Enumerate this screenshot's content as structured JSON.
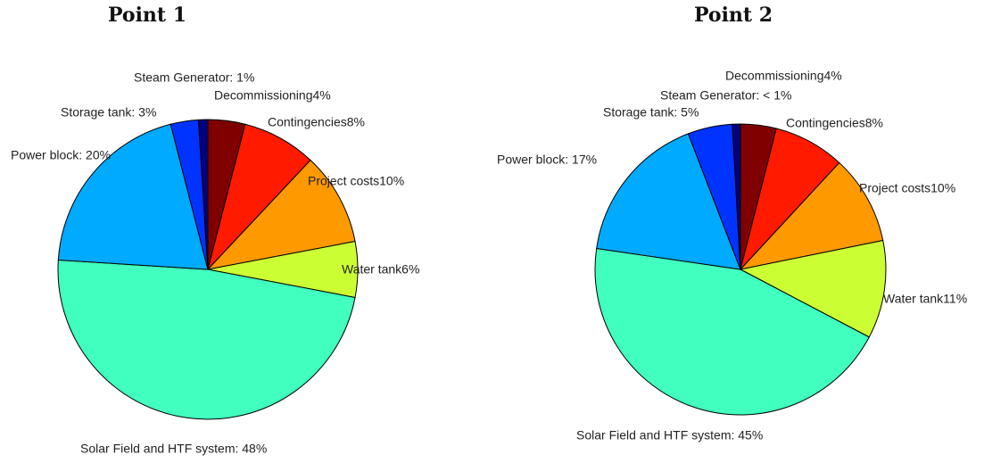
{
  "chart_data": [
    {
      "type": "pie",
      "title": "Point 1",
      "categories": [
        "Decommissioning4%",
        "Contingencies8%",
        "Project costs10%",
        "Water tank6%",
        "Solar Field and HTF system: 48%",
        "Power block: 20%",
        "Storage tank: 3%",
        "Steam Generator: 1%"
      ],
      "values": [
        4,
        8,
        10,
        6,
        48,
        20,
        3,
        1
      ],
      "colors": [
        "#800000",
        "#ff1a00",
        "#ff9900",
        "#ccff33",
        "#40ffbf",
        "#00aaff",
        "#0033ff",
        "#000080"
      ]
    },
    {
      "type": "pie",
      "title": "Point 2",
      "categories": [
        "Decommissioning4%",
        "Contingencies8%",
        "Project costs10%",
        "Water tank11%",
        "Solar Field and HTF system: 45%",
        "Power block: 17%",
        "Storage tank: 5%",
        "Steam Generator: < 1%"
      ],
      "values": [
        4,
        8,
        10,
        11,
        45,
        17,
        5,
        0.9
      ],
      "colors": [
        "#800000",
        "#ff1a00",
        "#ff9900",
        "#ccff33",
        "#40ffbf",
        "#00aaff",
        "#0033ff",
        "#000080"
      ]
    }
  ]
}
